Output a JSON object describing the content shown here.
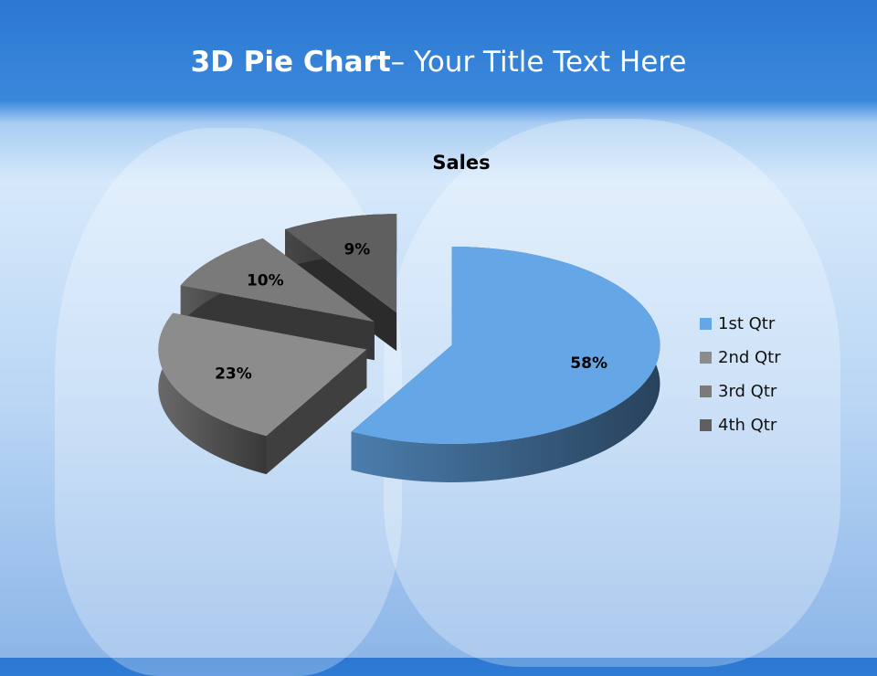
{
  "slide": {
    "title_bold": "3D Pie Chart",
    "title_rest": "– Your Title Text Here"
  },
  "chart_data": {
    "type": "pie",
    "style": "3d-exploded",
    "title": "Sales",
    "categories": [
      "1st Qtr",
      "2nd Qtr",
      "3rd Qtr",
      "4th Qtr"
    ],
    "values": [
      58,
      23,
      10,
      9
    ],
    "labels": [
      "58%",
      "23%",
      "10%",
      "9%"
    ],
    "colors": [
      "#64a6e6",
      "#8c8c8c",
      "#7a7a7a",
      "#5f5f5f"
    ],
    "legend_position": "right"
  }
}
